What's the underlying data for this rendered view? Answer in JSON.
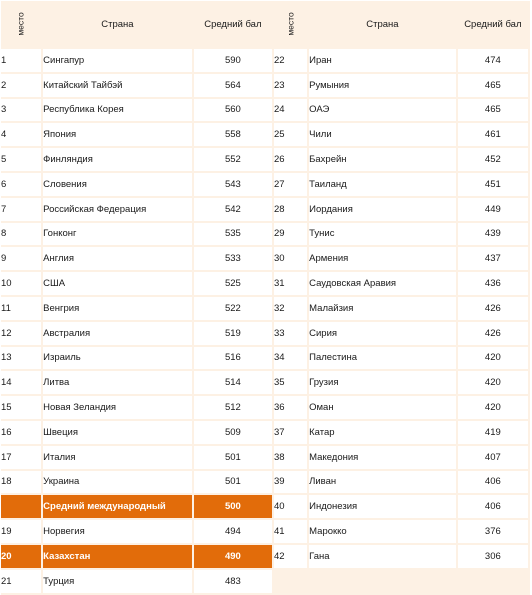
{
  "headers": {
    "rank": "место",
    "country": "Страна",
    "score": "Средний бал"
  },
  "left_rows": [
    {
      "rank": "1",
      "country": "Сингапур",
      "score": "590",
      "highlight": false
    },
    {
      "rank": "2",
      "country": "Китайский Тайбэй",
      "score": "564",
      "highlight": false
    },
    {
      "rank": "3",
      "country": "Республика Корея",
      "score": "560",
      "highlight": false
    },
    {
      "rank": "4",
      "country": "Япония",
      "score": "558",
      "highlight": false
    },
    {
      "rank": "5",
      "country": "Финляндия",
      "score": "552",
      "highlight": false
    },
    {
      "rank": "6",
      "country": "Словения",
      "score": "543",
      "highlight": false
    },
    {
      "rank": "7",
      "country": "Российская Федерация",
      "score": "542",
      "highlight": false
    },
    {
      "rank": "8",
      "country": "Гонконг",
      "score": "535",
      "highlight": false
    },
    {
      "rank": "9",
      "country": "Англия",
      "score": "533",
      "highlight": false
    },
    {
      "rank": "10",
      "country": "США",
      "score": "525",
      "highlight": false
    },
    {
      "rank": "11",
      "country": "Венгрия",
      "score": "522",
      "highlight": false
    },
    {
      "rank": "12",
      "country": "Австралия",
      "score": "519",
      "highlight": false
    },
    {
      "rank": "13",
      "country": "Израиль",
      "score": "516",
      "highlight": false
    },
    {
      "rank": "14",
      "country": "Литва",
      "score": "514",
      "highlight": false
    },
    {
      "rank": "15",
      "country": "Новая Зеландия",
      "score": "512",
      "highlight": false
    },
    {
      "rank": "16",
      "country": "Швеция",
      "score": "509",
      "highlight": false
    },
    {
      "rank": "17",
      "country": "Италия",
      "score": "501",
      "highlight": false
    },
    {
      "rank": "18",
      "country": "Украина",
      "score": "501",
      "highlight": false
    },
    {
      "rank": "",
      "country": "Средний международный",
      "score": "500",
      "highlight": true
    },
    {
      "rank": "19",
      "country": "Норвегия",
      "score": "494",
      "highlight": false
    },
    {
      "rank": "20",
      "country": "Казахстан",
      "score": "490",
      "highlight": true
    },
    {
      "rank": "21",
      "country": "Турция",
      "score": "483",
      "highlight": false
    }
  ],
  "right_rows": [
    {
      "rank": "22",
      "country": "Иран",
      "score": "474"
    },
    {
      "rank": "23",
      "country": "Румыния",
      "score": "465"
    },
    {
      "rank": "24",
      "country": "ОАЭ",
      "score": "465"
    },
    {
      "rank": "25",
      "country": "Чили",
      "score": "461"
    },
    {
      "rank": "26",
      "country": "Бахрейн",
      "score": "452"
    },
    {
      "rank": "27",
      "country": "Таиланд",
      "score": "451"
    },
    {
      "rank": "28",
      "country": "Иордания",
      "score": "449"
    },
    {
      "rank": "29",
      "country": "Тунис",
      "score": "439"
    },
    {
      "rank": "30",
      "country": "Армения",
      "score": "437"
    },
    {
      "rank": "31",
      "country": "Саудовская Аравия",
      "score": "436"
    },
    {
      "rank": "32",
      "country": "Малайзия",
      "score": "426"
    },
    {
      "rank": "33",
      "country": "Сирия",
      "score": "426"
    },
    {
      "rank": "34",
      "country": "Палестина",
      "score": "420"
    },
    {
      "rank": "35",
      "country": "Грузия",
      "score": "420"
    },
    {
      "rank": "36",
      "country": "Оман",
      "score": "420"
    },
    {
      "rank": "37",
      "country": "Катар",
      "score": "419"
    },
    {
      "rank": "38",
      "country": "Македония",
      "score": "407"
    },
    {
      "rank": "39",
      "country": "Ливан",
      "score": "406"
    },
    {
      "rank": "40",
      "country": "Индонезия",
      "score": "406"
    },
    {
      "rank": "41",
      "country": "Марокко",
      "score": "376"
    },
    {
      "rank": "42",
      "country": "Гана",
      "score": "306"
    }
  ],
  "colors": {
    "highlight": "#e26c0a",
    "frame": "#fdf1e4"
  }
}
